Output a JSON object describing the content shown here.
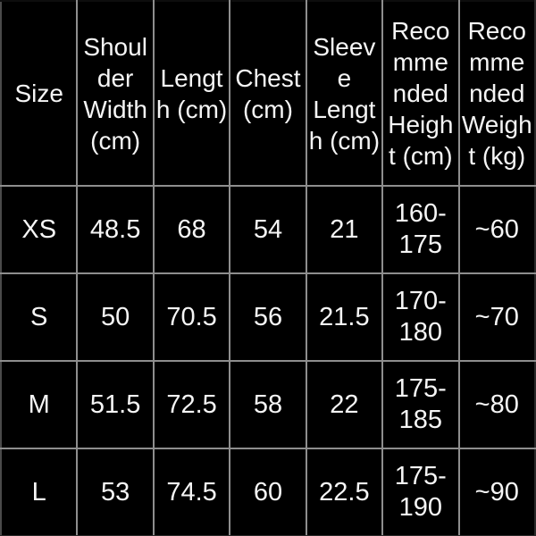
{
  "table": {
    "title": "size-chart",
    "colors": {
      "background": "#000000",
      "text": "#f5f5f5",
      "grid_line": "#8e8e8e"
    },
    "columns": [
      {
        "label": "Size",
        "display": "Size"
      },
      {
        "label": "Shoulder Width (cm)",
        "display": "Shoul\nder\nWidth\n(cm)"
      },
      {
        "label": "Length (cm)",
        "display": "Lengt\nh (cm)"
      },
      {
        "label": "Chest (cm)",
        "display": "Chest\n(cm)"
      },
      {
        "label": "Sleeve Length (cm)",
        "display": "Sleev\ne\nLengt\nh (cm)"
      },
      {
        "label": "Recommended Height (cm)",
        "display": "Reco\nmme\nnded\nHeigh\nt (cm)"
      },
      {
        "label": "Recommended Weight (kg)",
        "display": "Reco\nmme\nnded\nWeigh\nt (kg)"
      }
    ],
    "rows": [
      {
        "size": "XS",
        "shoulder_width_cm": "48.5",
        "length_cm": "68",
        "chest_cm": "54",
        "sleeve_length_cm": "21",
        "recommended_height_cm": "160-175",
        "recommended_weight_kg": "~60"
      },
      {
        "size": "S",
        "shoulder_width_cm": "50",
        "length_cm": "70.5",
        "chest_cm": "56",
        "sleeve_length_cm": "21.5",
        "recommended_height_cm": "170-180",
        "recommended_weight_kg": "~70"
      },
      {
        "size": "M",
        "shoulder_width_cm": "51.5",
        "length_cm": "72.5",
        "chest_cm": "58",
        "sleeve_length_cm": "22",
        "recommended_height_cm": "175-185",
        "recommended_weight_kg": "~80"
      },
      {
        "size": "L",
        "shoulder_width_cm": "53",
        "length_cm": "74.5",
        "chest_cm": "60",
        "sleeve_length_cm": "22.5",
        "recommended_height_cm": "175-190",
        "recommended_weight_kg": "~90"
      }
    ]
  }
}
